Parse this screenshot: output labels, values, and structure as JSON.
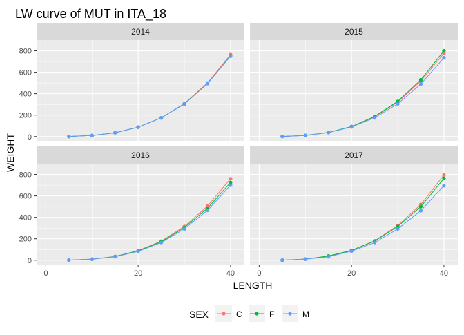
{
  "chart_data": {
    "type": "line",
    "title": "LW curve of MUT in ITA_18",
    "xlabel": "LENGTH",
    "ylabel": "WEIGHT",
    "x": [
      5,
      10,
      15,
      20,
      25,
      30,
      35,
      40
    ],
    "xlim": [
      -2,
      43
    ],
    "ylim": [
      -40,
      900
    ],
    "xticks": [
      0,
      20,
      40
    ],
    "yticks": [
      0,
      200,
      400,
      600,
      800
    ],
    "grid": true,
    "legend": {
      "title": "SEX",
      "position": "bottom"
    },
    "colors": {
      "C": "#F8766D",
      "F": "#00BA38",
      "M": "#619CFF"
    },
    "panels": [
      {
        "label": "2014",
        "series": [
          {
            "name": "C",
            "values": [
              1,
              10,
              36,
              88,
              175,
              308,
              500,
              765
            ]
          },
          {
            "name": "F",
            "values": [
              1,
              10,
              36,
              88,
              175,
              305,
              495,
              752
            ]
          },
          {
            "name": "M",
            "values": [
              1,
              10,
              36,
              88,
              175,
              303,
              494,
              750
            ]
          }
        ]
      },
      {
        "label": "2015",
        "series": [
          {
            "name": "C",
            "values": [
              1,
              11,
              38,
              92,
              184,
              322,
              518,
              775
            ]
          },
          {
            "name": "F",
            "values": [
              1,
              11,
              39,
              94,
              188,
              328,
              530,
              800
            ]
          },
          {
            "name": "M",
            "values": [
              1,
              10,
              37,
              90,
              175,
              305,
              490,
              735
            ]
          }
        ]
      },
      {
        "label": "2016",
        "series": [
          {
            "name": "C",
            "values": [
              1,
              10,
              36,
              90,
              178,
              315,
              505,
              760
            ]
          },
          {
            "name": "F",
            "values": [
              1,
              10,
              35,
              88,
              172,
              305,
              485,
              725
            ]
          },
          {
            "name": "M",
            "values": [
              1,
              10,
              33,
              83,
              165,
              292,
              465,
              700
            ]
          }
        ]
      },
      {
        "label": "2017",
        "series": [
          {
            "name": "C",
            "values": [
              1,
              11,
              38,
              92,
              182,
              323,
              520,
              795
            ]
          },
          {
            "name": "F",
            "values": [
              1,
              11,
              40,
              92,
              178,
              315,
              500,
              763
            ]
          },
          {
            "name": "M",
            "values": [
              1,
              10,
              33,
              85,
              165,
              292,
              462,
              695
            ]
          }
        ]
      }
    ]
  }
}
